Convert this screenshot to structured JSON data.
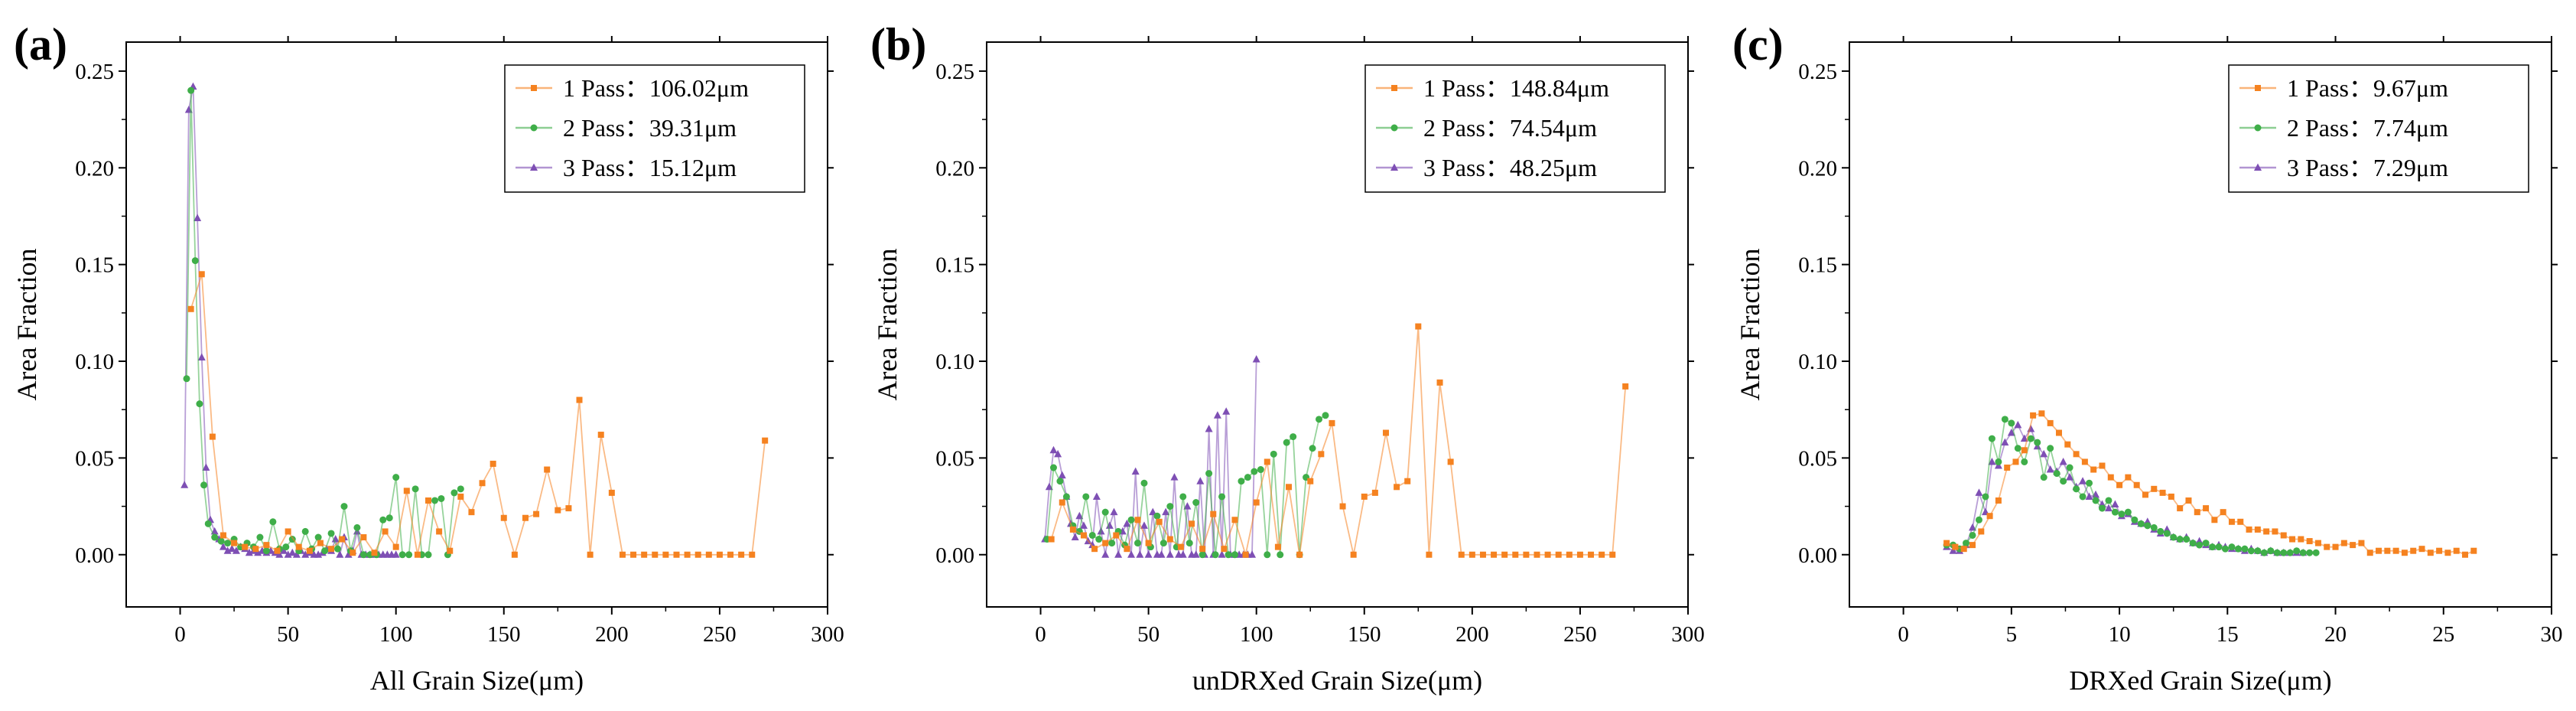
{
  "figure": {
    "colors": {
      "pass1": "#f58220",
      "pass2": "#3fae49",
      "pass3": "#7e4fb4"
    }
  },
  "chart_data": [
    {
      "type": "line",
      "panel_label": "(a)",
      "xlabel": "All Grain Size(μm)",
      "ylabel": "Area Fraction",
      "xlim": [
        -25,
        300
      ],
      "ylim": [
        -0.027,
        0.265
      ],
      "xticks": [
        "0",
        "50",
        "100",
        "150",
        "200",
        "250",
        "300"
      ],
      "yticks": [
        "0.00",
        "0.05",
        "0.10",
        "0.15",
        "0.20",
        "0.25"
      ],
      "legend": [
        "1 Pass：106.02μm",
        "2 Pass：39.31μm",
        "3 Pass：15.12μm"
      ],
      "series": [
        {
          "name": "1 Pass",
          "marker": "square",
          "x": [
            5,
            10,
            15,
            20,
            25,
            30,
            35,
            40,
            45,
            50,
            55,
            60,
            65,
            70,
            75,
            80,
            85,
            90,
            95,
            100,
            105,
            110,
            115,
            120,
            125,
            130,
            135,
            140,
            145,
            150,
            155,
            160,
            165,
            170,
            175,
            180,
            185,
            190,
            195,
            200,
            205,
            210,
            215,
            220,
            225,
            230,
            235,
            240,
            245,
            250,
            255,
            260,
            265,
            271
          ],
          "y": [
            0.127,
            0.145,
            0.061,
            0.01,
            0.006,
            0.004,
            0.003,
            0.005,
            0.002,
            0.012,
            0.004,
            0.002,
            0.006,
            0.003,
            0.008,
            0.001,
            0.009,
            0.001,
            0.012,
            0.004,
            0.033,
            0.0,
            0.028,
            0.012,
            0.002,
            0.03,
            0.022,
            0.037,
            0.047,
            0.019,
            0.0,
            0.019,
            0.021,
            0.044,
            0.023,
            0.024,
            0.08,
            0.0,
            0.062,
            0.032,
            0.0,
            0.0,
            0.0,
            0.0,
            0.0,
            0.0,
            0.0,
            0.0,
            0.0,
            0.0,
            0.0,
            0.0,
            0.0,
            0.059
          ]
        },
        {
          "name": "2 Pass",
          "marker": "circle",
          "x": [
            3,
            5,
            7,
            9,
            11,
            13,
            16,
            19,
            22,
            25,
            28,
            31,
            34,
            37,
            40,
            43,
            46,
            49,
            52,
            55,
            58,
            61,
            64,
            67,
            70,
            73,
            76,
            79,
            82,
            85,
            88,
            91,
            94,
            97,
            100,
            103,
            106,
            109,
            112,
            115,
            118,
            121,
            124,
            127,
            130
          ],
          "y": [
            0.091,
            0.24,
            0.152,
            0.078,
            0.036,
            0.016,
            0.009,
            0.007,
            0.006,
            0.008,
            0.004,
            0.006,
            0.004,
            0.009,
            0.002,
            0.017,
            0.003,
            0.004,
            0.008,
            0.002,
            0.012,
            0.003,
            0.009,
            0.002,
            0.011,
            0.003,
            0.025,
            0.002,
            0.014,
            0.0,
            0.0,
            0.0,
            0.018,
            0.019,
            0.04,
            0.0,
            0.0,
            0.034,
            0.0,
            0.0,
            0.028,
            0.029,
            0.0,
            0.032,
            0.034
          ]
        },
        {
          "name": "3 Pass",
          "marker": "triangle",
          "x": [
            2,
            4,
            6,
            8,
            10,
            12,
            14,
            16,
            18,
            20,
            22,
            24,
            26,
            28,
            30,
            32,
            34,
            36,
            38,
            40,
            42,
            44,
            46,
            48,
            50,
            52,
            54,
            56,
            58,
            60,
            62,
            64,
            66,
            68,
            70,
            72,
            74,
            76,
            78,
            80,
            82,
            84,
            86,
            88,
            90,
            92,
            94,
            96,
            98,
            100
          ],
          "y": [
            0.036,
            0.23,
            0.242,
            0.174,
            0.102,
            0.045,
            0.018,
            0.012,
            0.008,
            0.004,
            0.002,
            0.003,
            0.002,
            0.004,
            0.003,
            0.001,
            0.002,
            0.001,
            0.002,
            0.001,
            0.002,
            0.001,
            0.0,
            0.002,
            0.0,
            0.001,
            0.0,
            0.002,
            0.0,
            0.001,
            0.0,
            0.0,
            0.001,
            0.003,
            0.002,
            0.008,
            0.0,
            0.009,
            0.0,
            0.002,
            0.012,
            0.0,
            0.0,
            0.0,
            0.0,
            0.0,
            0.0,
            0.0,
            0.0,
            0.0
          ]
        }
      ]
    },
    {
      "type": "line",
      "panel_label": "(b)",
      "xlabel": "unDRXed Grain Size(μm)",
      "ylabel": "Area Fraction",
      "xlim": [
        -25,
        300
      ],
      "ylim": [
        -0.027,
        0.265
      ],
      "xticks": [
        "0",
        "50",
        "100",
        "150",
        "200",
        "250",
        "300"
      ],
      "yticks": [
        "0.00",
        "0.05",
        "0.10",
        "0.15",
        "0.20",
        "0.25"
      ],
      "legend": [
        "1 Pass：148.84μm",
        "2 Pass：74.54μm",
        "3 Pass：48.25μm"
      ],
      "series": [
        {
          "name": "1 Pass",
          "marker": "square",
          "x": [
            5,
            10,
            15,
            20,
            25,
            30,
            35,
            40,
            45,
            50,
            55,
            60,
            65,
            70,
            75,
            80,
            85,
            90,
            95,
            100,
            105,
            110,
            115,
            120,
            125,
            130,
            135,
            140,
            145,
            150,
            155,
            160,
            165,
            170,
            175,
            180,
            185,
            190,
            195,
            200,
            205,
            210,
            215,
            220,
            225,
            230,
            235,
            240,
            245,
            250,
            255,
            260,
            265,
            271
          ],
          "y": [
            0.008,
            0.027,
            0.013,
            0.01,
            0.003,
            0.006,
            0.01,
            0.003,
            0.018,
            0.006,
            0.017,
            0.008,
            0.004,
            0.016,
            0.003,
            0.021,
            0.003,
            0.018,
            0.0,
            0.027,
            0.048,
            0.004,
            0.035,
            0.0,
            0.038,
            0.052,
            0.068,
            0.025,
            0.0,
            0.03,
            0.032,
            0.063,
            0.035,
            0.038,
            0.118,
            0.0,
            0.089,
            0.048,
            0.0,
            0.0,
            0.0,
            0.0,
            0.0,
            0.0,
            0.0,
            0.0,
            0.0,
            0.0,
            0.0,
            0.0,
            0.0,
            0.0,
            0.0,
            0.087
          ]
        },
        {
          "name": "2 Pass",
          "marker": "circle",
          "x": [
            3,
            6,
            9,
            12,
            15,
            18,
            21,
            24,
            27,
            30,
            33,
            36,
            39,
            42,
            45,
            48,
            51,
            54,
            57,
            60,
            63,
            66,
            69,
            72,
            75,
            78,
            81,
            84,
            87,
            90,
            93,
            96,
            99,
            102,
            105,
            108,
            111,
            114,
            117,
            120,
            123,
            126,
            129,
            132
          ],
          "y": [
            0.008,
            0.045,
            0.038,
            0.03,
            0.015,
            0.012,
            0.03,
            0.01,
            0.008,
            0.022,
            0.006,
            0.012,
            0.005,
            0.018,
            0.006,
            0.037,
            0.004,
            0.02,
            0.006,
            0.025,
            0.004,
            0.03,
            0.006,
            0.027,
            0.0,
            0.042,
            0.0,
            0.03,
            0.0,
            0.0,
            0.038,
            0.04,
            0.043,
            0.044,
            0.0,
            0.052,
            0.0,
            0.058,
            0.061,
            0.0,
            0.04,
            0.055,
            0.07,
            0.072
          ]
        },
        {
          "name": "3 Pass",
          "marker": "triangle",
          "x": [
            2,
            4,
            6,
            8,
            10,
            12,
            14,
            16,
            18,
            20,
            22,
            24,
            26,
            28,
            30,
            32,
            34,
            36,
            38,
            40,
            42,
            44,
            46,
            48,
            50,
            52,
            54,
            56,
            58,
            60,
            62,
            64,
            66,
            68,
            70,
            72,
            74,
            76,
            78,
            80,
            82,
            84,
            86,
            88,
            90,
            92,
            94,
            96,
            98,
            100
          ],
          "y": [
            0.008,
            0.035,
            0.054,
            0.052,
            0.041,
            0.03,
            0.016,
            0.009,
            0.02,
            0.015,
            0.007,
            0.005,
            0.03,
            0.012,
            0.0,
            0.015,
            0.022,
            0.0,
            0.012,
            0.016,
            0.0,
            0.043,
            0.0,
            0.015,
            0.0,
            0.022,
            0.0,
            0.0,
            0.022,
            0.0,
            0.04,
            0.0,
            0.0,
            0.025,
            0.0,
            0.0,
            0.038,
            0.0,
            0.065,
            0.0,
            0.072,
            0.0,
            0.074,
            0.0,
            0.0,
            0.0,
            0.0,
            0.0,
            0.0,
            0.101
          ]
        }
      ]
    },
    {
      "type": "line",
      "panel_label": "(c)",
      "xlabel": "DRXed Grain Size(μm)",
      "ylabel": "Area Fraction",
      "xlim": [
        -2.5,
        30
      ],
      "ylim": [
        -0.027,
        0.265
      ],
      "xticks": [
        "0",
        "5",
        "10",
        "15",
        "20",
        "25",
        "30"
      ],
      "yticks": [
        "0.00",
        "0.05",
        "0.10",
        "0.15",
        "0.20",
        "0.25"
      ],
      "legend": [
        "1 Pass：9.67μm",
        "2 Pass：7.74μm",
        "3 Pass：7.29μm"
      ],
      "series": [
        {
          "name": "1 Pass",
          "marker": "square",
          "x": [
            2.0,
            2.4,
            2.8,
            3.2,
            3.6,
            4.0,
            4.4,
            4.8,
            5.2,
            5.6,
            6.0,
            6.4,
            6.8,
            7.2,
            7.6,
            8.0,
            8.4,
            8.8,
            9.2,
            9.6,
            10.0,
            10.4,
            10.8,
            11.2,
            11.6,
            12.0,
            12.4,
            12.8,
            13.2,
            13.6,
            14.0,
            14.4,
            14.8,
            15.2,
            15.6,
            16.0,
            16.4,
            16.8,
            17.2,
            17.6,
            18.0,
            18.4,
            18.8,
            19.2,
            19.6,
            20.0,
            20.4,
            20.8,
            21.2,
            21.6,
            22.0,
            22.4,
            22.8,
            23.2,
            23.6,
            24.0,
            24.4,
            24.8,
            25.2,
            25.6,
            26.0,
            26.4
          ],
          "y": [
            0.006,
            0.004,
            0.003,
            0.005,
            0.012,
            0.02,
            0.028,
            0.045,
            0.048,
            0.054,
            0.072,
            0.073,
            0.068,
            0.063,
            0.057,
            0.052,
            0.048,
            0.044,
            0.046,
            0.04,
            0.036,
            0.04,
            0.036,
            0.031,
            0.034,
            0.032,
            0.03,
            0.024,
            0.028,
            0.022,
            0.024,
            0.018,
            0.022,
            0.017,
            0.017,
            0.013,
            0.013,
            0.012,
            0.012,
            0.01,
            0.008,
            0.008,
            0.007,
            0.006,
            0.004,
            0.004,
            0.006,
            0.005,
            0.006,
            0.001,
            0.002,
            0.002,
            0.002,
            0.001,
            0.002,
            0.003,
            0.001,
            0.002,
            0.001,
            0.002,
            0.0,
            0.002
          ]
        },
        {
          "name": "2 Pass",
          "marker": "circle",
          "x": [
            2.0,
            2.3,
            2.6,
            2.9,
            3.2,
            3.5,
            3.8,
            4.1,
            4.4,
            4.7,
            5.0,
            5.3,
            5.6,
            5.9,
            6.2,
            6.5,
            6.8,
            7.1,
            7.4,
            7.7,
            8.0,
            8.3,
            8.6,
            8.9,
            9.2,
            9.5,
            9.8,
            10.1,
            10.4,
            10.7,
            11.0,
            11.3,
            11.6,
            11.9,
            12.2,
            12.5,
            12.8,
            13.1,
            13.4,
            13.7,
            14.0,
            14.3,
            14.6,
            14.9,
            15.2,
            15.5,
            15.8,
            16.1,
            16.4,
            16.7,
            17.0,
            17.3,
            17.6,
            17.9,
            18.2,
            18.5,
            18.8,
            19.1
          ],
          "y": [
            0.005,
            0.005,
            0.003,
            0.006,
            0.01,
            0.018,
            0.03,
            0.06,
            0.048,
            0.07,
            0.068,
            0.055,
            0.048,
            0.06,
            0.058,
            0.04,
            0.055,
            0.042,
            0.038,
            0.045,
            0.034,
            0.03,
            0.037,
            0.028,
            0.024,
            0.028,
            0.022,
            0.021,
            0.022,
            0.018,
            0.016,
            0.015,
            0.014,
            0.012,
            0.011,
            0.009,
            0.008,
            0.008,
            0.006,
            0.005,
            0.006,
            0.004,
            0.004,
            0.003,
            0.004,
            0.003,
            0.003,
            0.002,
            0.002,
            0.001,
            0.002,
            0.001,
            0.001,
            0.001,
            0.002,
            0.001,
            0.001,
            0.001
          ]
        },
        {
          "name": "3 Pass",
          "marker": "triangle",
          "x": [
            2.0,
            2.3,
            2.6,
            2.9,
            3.2,
            3.5,
            3.8,
            4.1,
            4.4,
            4.7,
            5.0,
            5.3,
            5.6,
            5.9,
            6.2,
            6.5,
            6.8,
            7.1,
            7.4,
            7.7,
            8.0,
            8.3,
            8.6,
            8.9,
            9.2,
            9.5,
            9.8,
            10.1,
            10.4,
            10.7,
            11.0,
            11.3,
            11.6,
            11.9,
            12.2,
            12.5,
            12.8,
            13.1,
            13.4,
            13.7,
            14.0,
            14.3,
            14.6,
            14.9,
            15.2,
            15.5,
            15.8,
            16.1,
            16.4,
            16.7,
            17.0,
            17.3,
            17.6,
            17.9,
            18.2,
            18.5
          ],
          "y": [
            0.004,
            0.002,
            0.002,
            0.005,
            0.014,
            0.032,
            0.022,
            0.048,
            0.046,
            0.058,
            0.063,
            0.067,
            0.06,
            0.065,
            0.056,
            0.052,
            0.044,
            0.043,
            0.048,
            0.04,
            0.035,
            0.038,
            0.03,
            0.031,
            0.026,
            0.024,
            0.026,
            0.02,
            0.021,
            0.017,
            0.016,
            0.017,
            0.013,
            0.011,
            0.013,
            0.009,
            0.008,
            0.009,
            0.006,
            0.007,
            0.005,
            0.004,
            0.005,
            0.004,
            0.003,
            0.003,
            0.002,
            0.003,
            0.002,
            0.001,
            0.002,
            0.001,
            0.001,
            0.001,
            0.001,
            0.001
          ]
        }
      ]
    }
  ]
}
